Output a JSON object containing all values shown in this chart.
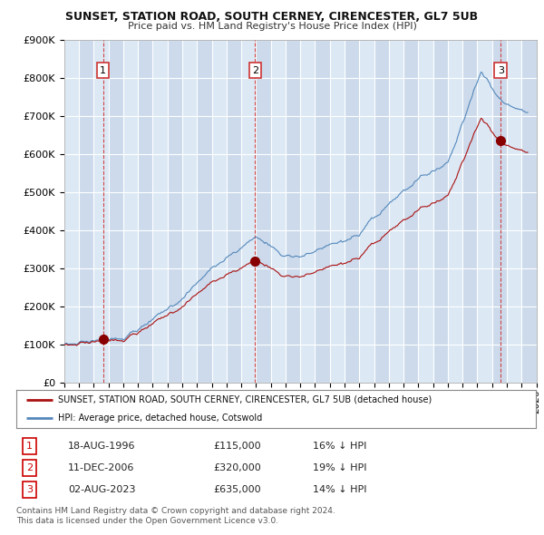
{
  "title1": "SUNSET, STATION ROAD, SOUTH CERNEY, CIRENCESTER, GL7 5UB",
  "title2": "Price paid vs. HM Land Registry's House Price Index (HPI)",
  "ylim": [
    0,
    900000
  ],
  "yticks": [
    0,
    100000,
    200000,
    300000,
    400000,
    500000,
    600000,
    700000,
    800000,
    900000
  ],
  "ytick_labels": [
    "£0",
    "£100K",
    "£200K",
    "£300K",
    "£400K",
    "£500K",
    "£600K",
    "£700K",
    "£800K",
    "£900K"
  ],
  "background_color": "#ffffff",
  "plot_bg_color": "#dce9f5",
  "grid_color": "#ffffff",
  "hpi_color": "#5588bb",
  "sale_color": "#aa1111",
  "sale_marker_color": "#880000",
  "dashed_line_color": "#cc3333",
  "shade_color": "#ccddf0",
  "sales": [
    {
      "date_num": 1996.63,
      "price": 115000,
      "label": "1"
    },
    {
      "date_num": 2006.94,
      "price": 320000,
      "label": "2"
    },
    {
      "date_num": 2023.58,
      "price": 635000,
      "label": "3"
    }
  ],
  "legend_line1": "SUNSET, STATION ROAD, SOUTH CERNEY, CIRENCESTER, GL7 5UB (detached house)",
  "legend_line2": "HPI: Average price, detached house, Cotswold",
  "table_rows": [
    {
      "num": "1",
      "date": "18-AUG-1996",
      "price": "£115,000",
      "hpi": "16% ↓ HPI"
    },
    {
      "num": "2",
      "date": "11-DEC-2006",
      "price": "£320,000",
      "hpi": "19% ↓ HPI"
    },
    {
      "num": "3",
      "date": "02-AUG-2023",
      "price": "£635,000",
      "hpi": "14% ↓ HPI"
    }
  ],
  "footer": "Contains HM Land Registry data © Crown copyright and database right 2024.\nThis data is licensed under the Open Government Licence v3.0.",
  "xmin": 1994.0,
  "xmax": 2026.0
}
